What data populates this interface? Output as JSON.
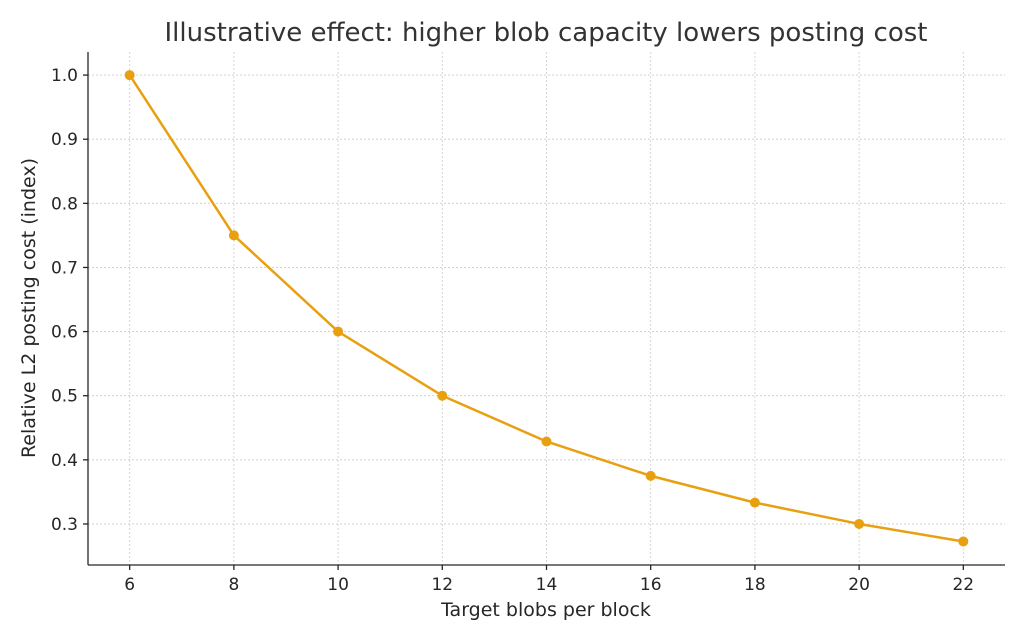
{
  "chart_data": {
    "type": "line",
    "title": "Illustrative effect: higher blob capacity lowers posting cost",
    "xlabel": "Target blobs per block",
    "ylabel": "Relative L2 posting cost (index)",
    "x": [
      6,
      8,
      10,
      12,
      14,
      16,
      18,
      20,
      22
    ],
    "series": [
      {
        "values": [
          1.0,
          0.75,
          0.6,
          0.5,
          0.4286,
          0.375,
          0.3333,
          0.3,
          0.2727
        ],
        "color": "#E8A010",
        "marker": "circle"
      }
    ],
    "xticks": [
      "6",
      "8",
      "10",
      "12",
      "14",
      "16",
      "18",
      "20",
      "22"
    ],
    "yticks": [
      "0.3",
      "0.4",
      "0.5",
      "0.6",
      "0.7",
      "0.8",
      "0.9",
      "1.0"
    ],
    "xlim": [
      5.2,
      22.8
    ],
    "ylim": [
      0.236,
      1.036
    ],
    "grid": true
  }
}
